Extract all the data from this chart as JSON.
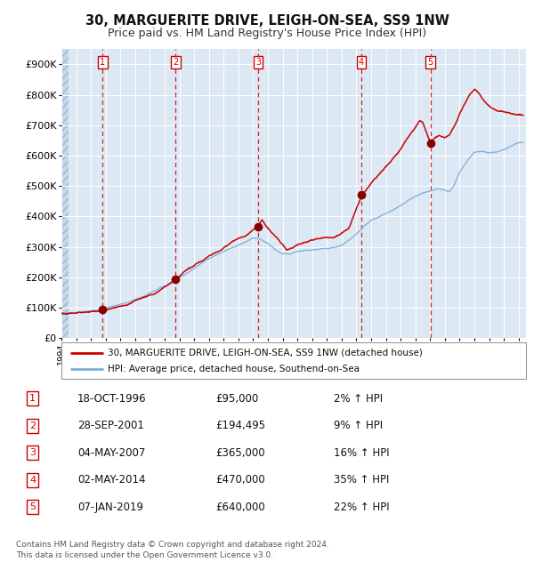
{
  "title": "30, MARGUERITE DRIVE, LEIGH-ON-SEA, SS9 1NW",
  "subtitle": "Price paid vs. HM Land Registry's House Price Index (HPI)",
  "ylim": [
    0,
    950000
  ],
  "xlim_start": 1994.0,
  "xlim_end": 2025.5,
  "background_color": "#dce9f5",
  "grid_color": "#ffffff",
  "sale_dates_decimal": [
    1996.8,
    2001.74,
    2007.34,
    2014.34,
    2019.02
  ],
  "sale_prices": [
    95000,
    194495,
    365000,
    470000,
    640000
  ],
  "sale_labels": [
    "1",
    "2",
    "3",
    "4",
    "5"
  ],
  "red_line_color": "#cc0000",
  "blue_line_color": "#7aaed6",
  "marker_color": "#880000",
  "vline_color": "#cc0000",
  "legend_entries": [
    "30, MARGUERITE DRIVE, LEIGH-ON-SEA, SS9 1NW (detached house)",
    "HPI: Average price, detached house, Southend-on-Sea"
  ],
  "table_rows": [
    [
      "1",
      "18-OCT-1996",
      "£95,000",
      "2% ↑ HPI"
    ],
    [
      "2",
      "28-SEP-2001",
      "£194,495",
      "9% ↑ HPI"
    ],
    [
      "3",
      "04-MAY-2007",
      "£365,000",
      "16% ↑ HPI"
    ],
    [
      "4",
      "02-MAY-2014",
      "£470,000",
      "35% ↑ HPI"
    ],
    [
      "5",
      "07-JAN-2019",
      "£640,000",
      "22% ↑ HPI"
    ]
  ],
  "footnote": "Contains HM Land Registry data © Crown copyright and database right 2024.\nThis data is licensed under the Open Government Licence v3.0."
}
